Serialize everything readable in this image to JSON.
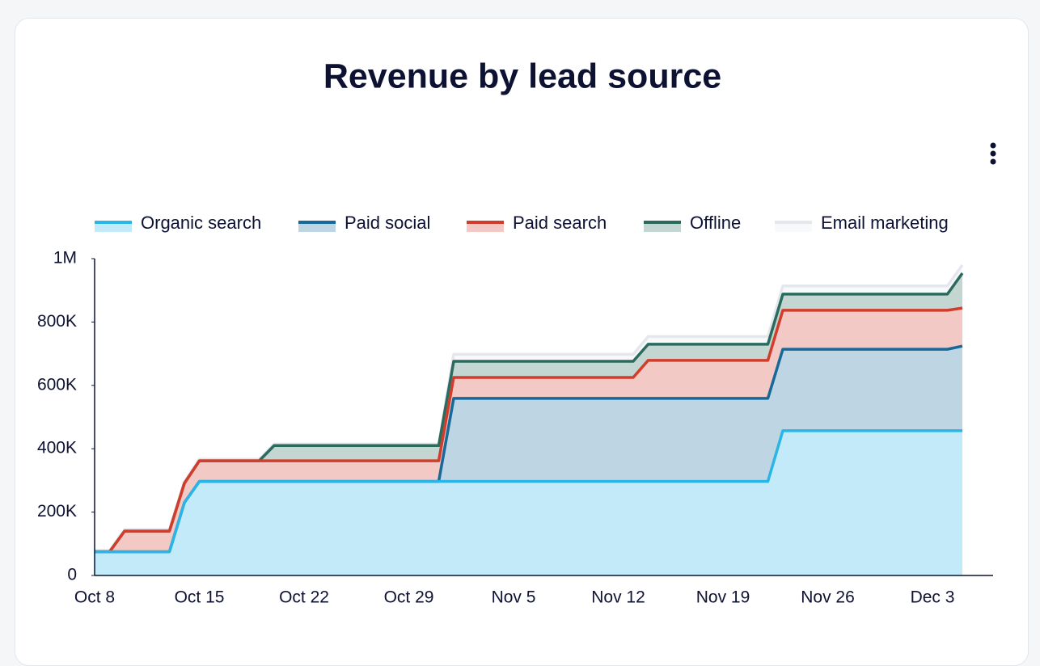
{
  "chart_data": {
    "type": "stacked-area",
    "title": "Revenue by lead source",
    "categories": [
      "Oct 8",
      null,
      null,
      null,
      null,
      null,
      null,
      "Oct 15",
      null,
      null,
      null,
      null,
      null,
      null,
      "Oct 22",
      null,
      null,
      null,
      null,
      null,
      null,
      "Oct 29",
      null,
      null,
      null,
      null,
      null,
      null,
      "Nov 5",
      null,
      null,
      null,
      null,
      null,
      null,
      "Nov 12",
      null,
      null,
      null,
      null,
      null,
      null,
      "Nov 19",
      null,
      null,
      null,
      null,
      null,
      null,
      "Nov 26",
      null,
      null,
      null,
      null,
      null,
      null,
      "Dec 3",
      null,
      null
    ],
    "series": [
      {
        "name": "Organic search",
        "color": "#29b5e8",
        "values": [
          75000,
          75000,
          75000,
          75000,
          75000,
          75000,
          230000,
          297000,
          297000,
          297000,
          297000,
          297000,
          297000,
          297000,
          297000,
          297000,
          297000,
          297000,
          297000,
          297000,
          297000,
          297000,
          297000,
          297000,
          297000,
          297000,
          297000,
          297000,
          297000,
          297000,
          297000,
          297000,
          297000,
          297000,
          297000,
          297000,
          297000,
          297000,
          297000,
          297000,
          297000,
          297000,
          297000,
          297000,
          297000,
          297000,
          457000,
          457000,
          457000,
          457000,
          457000,
          457000,
          457000,
          457000,
          457000,
          457000,
          457000,
          457000,
          457000
        ]
      },
      {
        "name": "Paid social",
        "color": "#17699a",
        "values": [
          0,
          0,
          0,
          0,
          0,
          0,
          0,
          0,
          0,
          0,
          0,
          0,
          0,
          0,
          0,
          0,
          0,
          0,
          0,
          0,
          0,
          0,
          0,
          0,
          262000,
          262000,
          262000,
          262000,
          262000,
          262000,
          262000,
          262000,
          262000,
          262000,
          262000,
          262000,
          262000,
          262000,
          262000,
          262000,
          262000,
          262000,
          262000,
          262000,
          262000,
          262000,
          257000,
          257000,
          257000,
          257000,
          257000,
          257000,
          257000,
          257000,
          257000,
          257000,
          257000,
          257000,
          267000
        ]
      },
      {
        "name": "Paid search",
        "color": "#d23c2a",
        "values": [
          0,
          0,
          65000,
          65000,
          65000,
          65000,
          61000,
          65000,
          65000,
          65000,
          65000,
          65000,
          65000,
          65000,
          65000,
          65000,
          65000,
          65000,
          65000,
          65000,
          65000,
          65000,
          65000,
          65000,
          66000,
          66000,
          66000,
          66000,
          66000,
          66000,
          66000,
          66000,
          66000,
          66000,
          66000,
          66000,
          66000,
          120000,
          120000,
          120000,
          120000,
          120000,
          120000,
          120000,
          120000,
          120000,
          123000,
          123000,
          123000,
          123000,
          123000,
          123000,
          123000,
          123000,
          123000,
          123000,
          123000,
          123000,
          120000
        ]
      },
      {
        "name": "Offline",
        "color": "#2b6b5e",
        "values": [
          0,
          0,
          0,
          0,
          0,
          0,
          0,
          0,
          0,
          0,
          0,
          0,
          48000,
          48000,
          48000,
          48000,
          48000,
          48000,
          48000,
          48000,
          48000,
          48000,
          48000,
          48000,
          51000,
          51000,
          51000,
          51000,
          51000,
          51000,
          51000,
          51000,
          51000,
          51000,
          51000,
          51000,
          51000,
          51000,
          51000,
          51000,
          51000,
          51000,
          51000,
          51000,
          51000,
          51000,
          51000,
          51000,
          51000,
          51000,
          51000,
          51000,
          51000,
          51000,
          51000,
          51000,
          51000,
          51000,
          110000
        ]
      },
      {
        "name": "Email marketing",
        "color": "#e4e8ee",
        "values": [
          3000,
          3000,
          5000,
          5000,
          5000,
          5000,
          5000,
          5000,
          5000,
          5000,
          5000,
          5000,
          5000,
          5000,
          5000,
          5000,
          5000,
          5000,
          5000,
          5000,
          5000,
          5000,
          5000,
          5000,
          22000,
          22000,
          22000,
          22000,
          22000,
          22000,
          22000,
          22000,
          22000,
          22000,
          22000,
          22000,
          22000,
          24000,
          24000,
          24000,
          24000,
          24000,
          24000,
          24000,
          24000,
          24000,
          26000,
          26000,
          26000,
          26000,
          26000,
          26000,
          26000,
          26000,
          26000,
          26000,
          26000,
          26000,
          26000
        ]
      }
    ],
    "ylim": [
      0,
      1000000
    ],
    "yticks": [
      0,
      {
        "value": 200000,
        "label": "200K"
      },
      {
        "value": 400000,
        "label": "400K"
      },
      {
        "value": 600000,
        "label": "600K"
      },
      {
        "value": 800000,
        "label": "800K"
      },
      {
        "value": 1000000,
        "label": "1M"
      }
    ],
    "stacked": true,
    "legend": "top"
  }
}
